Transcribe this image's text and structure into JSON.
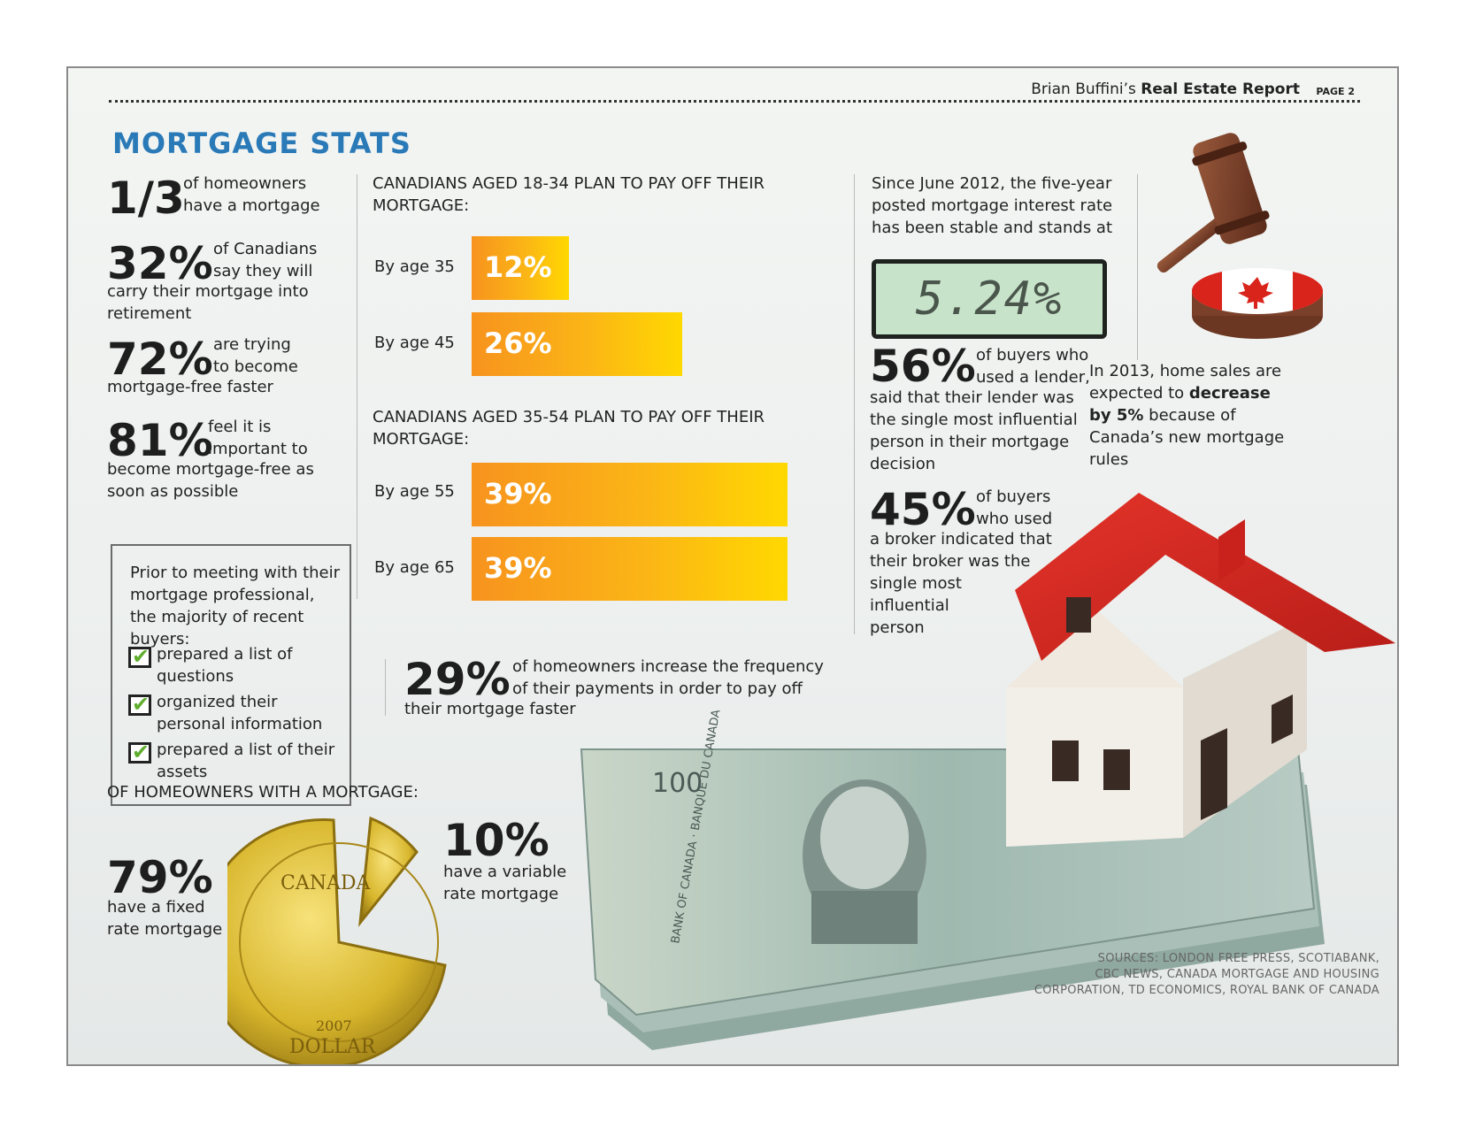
{
  "header": {
    "author_prefix": "Brian Buffini’s ",
    "report_name": "Real Estate Report",
    "page": "PAGE 2"
  },
  "title": "MORTGAGE STATS",
  "stats_left": [
    {
      "value": "1/3",
      "text_a": "of homeowners",
      "text_b": "have a mortgage"
    },
    {
      "value": "32%",
      "text_a": "of Canadians",
      "text_b": "say they will",
      "text_c": "carry their mortgage into",
      "text_d": "retirement"
    },
    {
      "value": "72%",
      "text_a": "are trying",
      "text_b": "to become",
      "text_c": "mortgage-free faster"
    },
    {
      "value": "81%",
      "text_a": "feel it is",
      "text_b": "important to",
      "text_c": "become mortgage-free as",
      "text_d": "soon as possible"
    }
  ],
  "prior_box": {
    "intro": "Prior to meeting with their mortgage professional, the majority of recent buyers:",
    "items": [
      "prepared a list of questions",
      "organized their personal information",
      "prepared a list of their assets"
    ]
  },
  "section_18_34": {
    "heading_a": "CANADIANS AGED 18-34 PLAN TO PAY OFF THEIR",
    "heading_b": "MORTGAGE:",
    "bars": [
      {
        "label": "By age 35",
        "value_text": "12%",
        "value": 12
      },
      {
        "label": "By age 45",
        "value_text": "26%",
        "value": 26
      }
    ]
  },
  "section_35_54": {
    "heading_a": "CANADIANS AGED 35-54 PLAN TO PAY OFF THEIR",
    "heading_b": "MORTGAGE:",
    "bars": [
      {
        "label": "By age 55",
        "value_text": "39%",
        "value": 39
      },
      {
        "label": "By age 65",
        "value_text": "39%",
        "value": 39
      }
    ]
  },
  "stat_29": {
    "value": "29%",
    "text_a": "of homeowners increase the frequency",
    "text_b": "of their payments in order to pay off",
    "text_c": "their mortgage faster"
  },
  "rate": {
    "text_a": "Since June 2012, the five-year",
    "text_b": "posted mortgage interest rate",
    "text_c": "has been stable and stands at",
    "display": "5.24%"
  },
  "stat_56": {
    "value": "56%",
    "text_a": "of buyers who",
    "text_b": "used a lender,",
    "text_c": "said that their lender was",
    "text_d": "the single most influential",
    "text_e": "person in their mortgage",
    "text_f": "decision"
  },
  "stat_45": {
    "value": "45%",
    "text_a": "of buyers",
    "text_b": "who used",
    "text_c": "a broker indicated that",
    "text_d": "their broker was the",
    "text_e": "single most",
    "text_f": "influential",
    "text_g": "person"
  },
  "sales": {
    "text_a": "In 2013, home sales are",
    "text_b": "expected to ",
    "bold_a": "decrease",
    "bold_b": "by 5%",
    "text_c": " because of",
    "text_d": "Canada’s new mortgage",
    "text_e": "rules"
  },
  "mortgage_type": {
    "heading": "OF HOMEOWNERS WITH A MORTGAGE:",
    "fixed_value": "79%",
    "fixed_text_a": "have a fixed",
    "fixed_text_b": "rate mortgage",
    "variable_value": "10%",
    "variable_text_a": "have a variable",
    "variable_text_b": "rate mortgage"
  },
  "coin": {
    "year": "2007",
    "word_top": "CANADA",
    "word_bottom": "DOLLAR"
  },
  "banknote": {
    "denomination": "100",
    "bank": "BANK OF CANADA · BANQUE DU CANADA"
  },
  "sources": {
    "line_a": "SOURCES: LONDON FREE PRESS, SCOTIABANK,",
    "line_b": "CBC NEWS, CANADA MORTGAGE AND HOUSING",
    "line_c": "CORPORATION, TD ECONOMICS, ROYAL BANK OF CANADA"
  },
  "colors": {
    "title": "#2a7ab8",
    "bar_start": "#f7931e",
    "bar_end": "#ffd800",
    "lcd": "#c7e3c9",
    "roof": "#d92a25"
  }
}
